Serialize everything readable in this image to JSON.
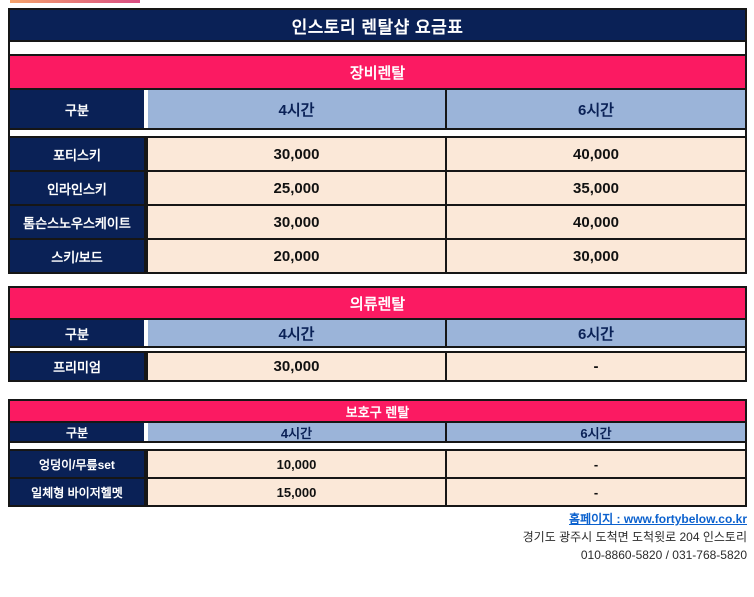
{
  "page": {
    "title": "인스토리 렌탈샵 요금표",
    "colors": {
      "navy": "#0A2156",
      "pink": "#FB1A62",
      "light_blue": "#9BB4D9",
      "cream": "#FBE8D8",
      "border": "#161616",
      "link_blue": "#0B61CE",
      "accent_gradient_start": "#F4A36B",
      "accent_gradient_end": "#D94E84"
    }
  },
  "columns": {
    "label": "구분",
    "col4": "4시간",
    "col6": "6시간"
  },
  "sections": [
    {
      "title": "장비렌탈",
      "rows": [
        {
          "label": "포티스키",
          "h4": "30,000",
          "h6": "40,000"
        },
        {
          "label": "인라인스키",
          "h4": "25,000",
          "h6": "35,000"
        },
        {
          "label": "톰슨스노우스케이트",
          "h4": "30,000",
          "h6": "40,000"
        },
        {
          "label": "스키/보드",
          "h4": "20,000",
          "h6": "30,000"
        }
      ]
    },
    {
      "title": "의류렌탈",
      "rows": [
        {
          "label": "프리미엄",
          "h4": "30,000",
          "h6": "-"
        }
      ]
    },
    {
      "title": "보호구 렌탈",
      "rows": [
        {
          "label": "엉덩이/무릎set",
          "h4": "10,000",
          "h6": "-"
        },
        {
          "label": "일체형 바이저헬멧",
          "h4": "15,000",
          "h6": "-"
        }
      ]
    }
  ],
  "footer": {
    "homepage": "홈페이지 : www.fortybelow.co.kr",
    "address": "경기도 광주시 도척면 도척윗로 204 인스토리",
    "phone": "010-8860-5820 / 031-768-5820"
  }
}
